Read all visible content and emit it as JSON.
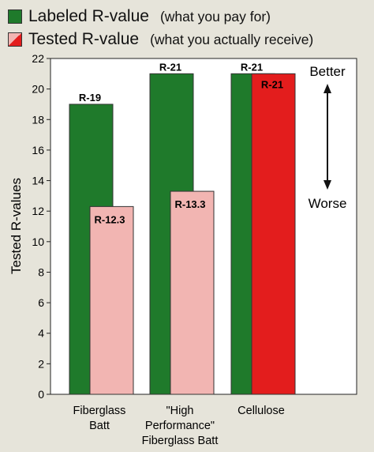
{
  "chart_data": {
    "type": "bar",
    "categories": [
      "Fiberglass\nBatt",
      "\"High\nPerformance\"\nFiberglass Batt",
      "Cellulose"
    ],
    "series": [
      {
        "name": "Labeled R-value",
        "note": "(what you pay for)",
        "color": "#1f7a2b",
        "values": [
          19,
          21,
          21
        ],
        "labels": [
          "R-19",
          "R-21",
          "R-21"
        ]
      },
      {
        "name": "Tested R-value",
        "note": "(what you actually receive)",
        "color": "#f2b5b2",
        "values": [
          12.3,
          13.3,
          21
        ],
        "labels": [
          "R-12.3",
          "R-13.3",
          "R-21"
        ]
      }
    ],
    "highlight_color": "#e31d1d",
    "ylabel": "Tested R-values",
    "ylim": [
      0,
      22
    ],
    "yticks": [
      0,
      2,
      4,
      6,
      8,
      10,
      12,
      14,
      16,
      18,
      20,
      22
    ],
    "annotations": {
      "better": "Better",
      "worse": "Worse"
    }
  }
}
